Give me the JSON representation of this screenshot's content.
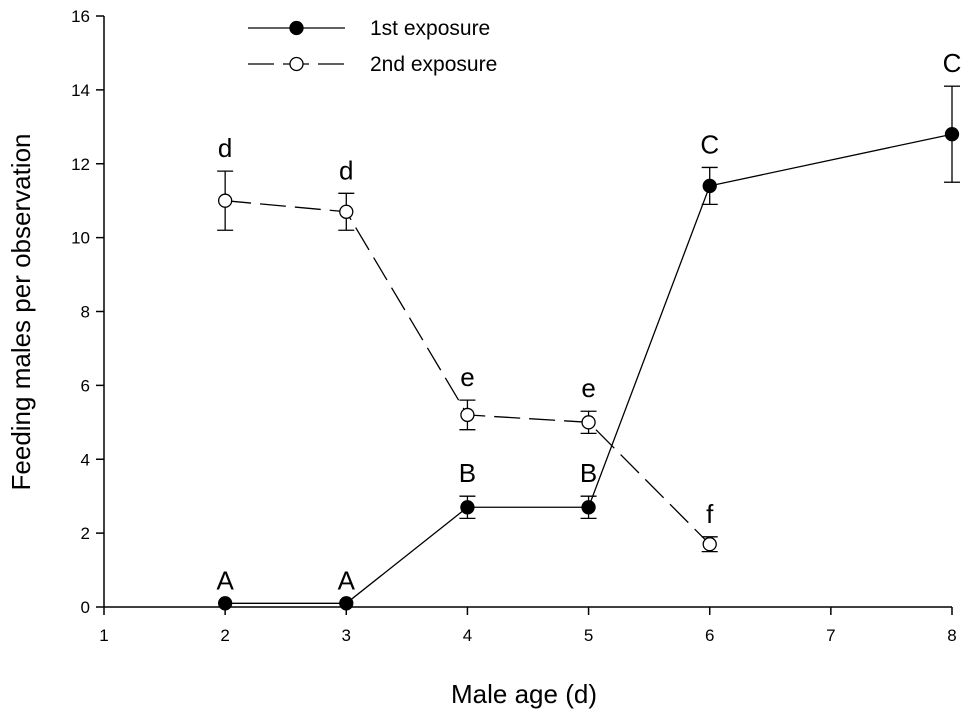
{
  "chart_data": {
    "type": "line",
    "title": "",
    "xlabel": "Male age (d)",
    "ylabel": "Feeding males per observation",
    "xlim": [
      1,
      8
    ],
    "ylim": [
      0,
      16
    ],
    "x_ticks": [
      1,
      2,
      3,
      4,
      5,
      6,
      7,
      8
    ],
    "y_ticks": [
      0,
      2,
      4,
      6,
      8,
      10,
      12,
      14,
      16
    ],
    "grid": false,
    "legend_position": "top-left",
    "series": [
      {
        "name": "1st exposure",
        "marker": "filled-circle",
        "line": "solid",
        "x": [
          2,
          3,
          4,
          5,
          6,
          8
        ],
        "y": [
          0.1,
          0.1,
          2.7,
          2.7,
          11.4,
          12.8
        ],
        "err": [
          0,
          0,
          0.3,
          0.3,
          0.5,
          1.3
        ],
        "labels": [
          "A",
          "A",
          "B",
          "B",
          "C",
          "C"
        ]
      },
      {
        "name": "2nd exposure",
        "marker": "open-circle",
        "line": "dashed",
        "x": [
          2,
          3,
          4,
          5,
          6
        ],
        "y": [
          11.0,
          10.7,
          5.2,
          5.0,
          1.7
        ],
        "err": [
          0.8,
          0.5,
          0.4,
          0.3,
          0.2
        ],
        "labels": [
          "d",
          "d",
          "e",
          "e",
          "f"
        ]
      }
    ]
  }
}
